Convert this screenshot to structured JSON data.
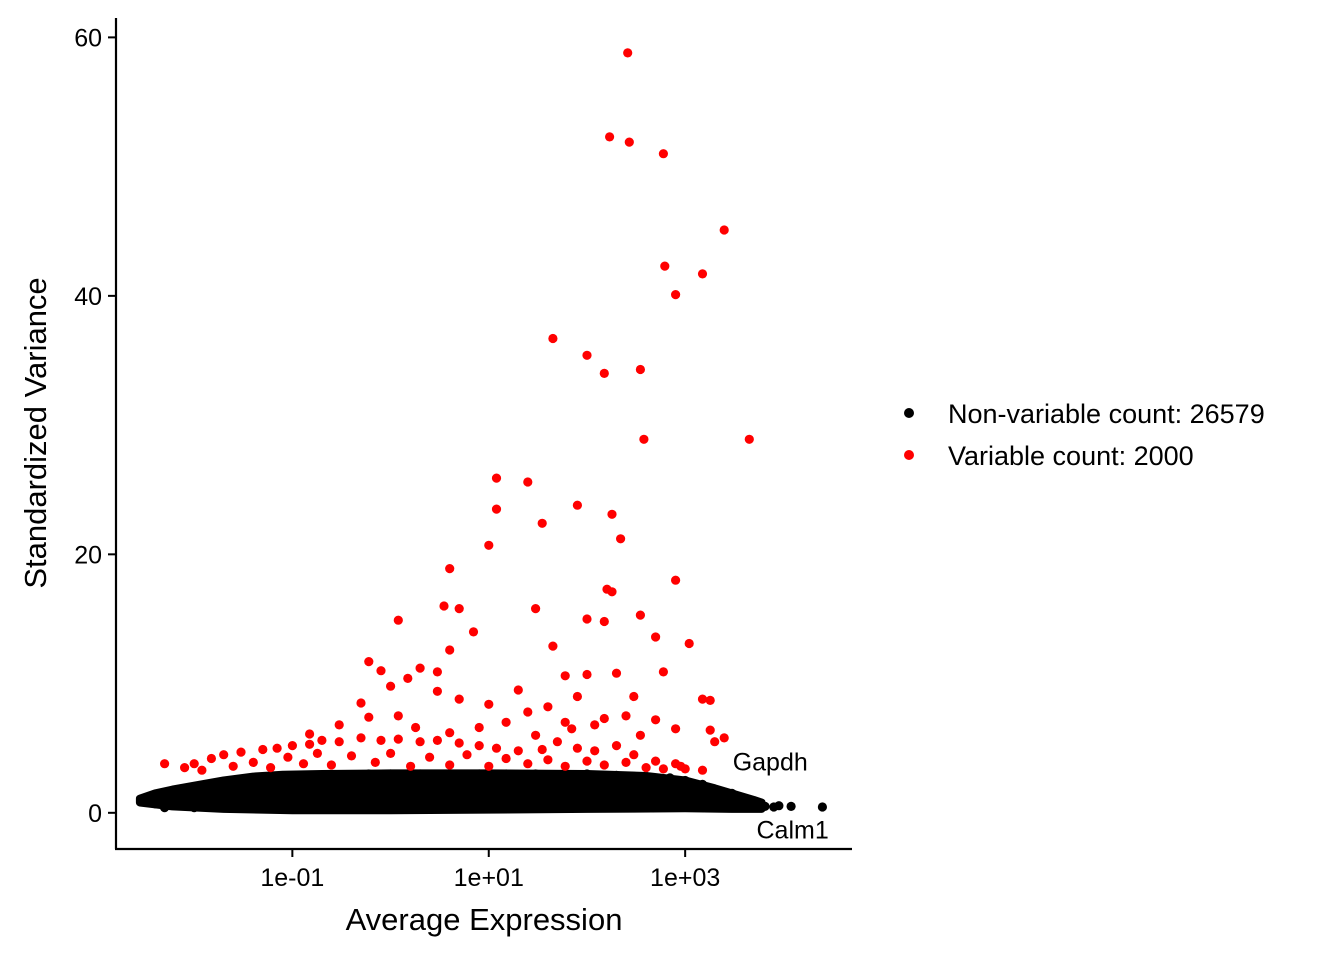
{
  "chart_data": {
    "type": "scatter",
    "title": "",
    "xlabel": "Average Expression",
    "ylabel": "Standardized Variance",
    "x_scale": "log10",
    "xlim": [
      0.0016,
      50000
    ],
    "ylim": [
      -2.8,
      61.5
    ],
    "x_ticks": [
      {
        "value": 0.1,
        "label": "1e-01"
      },
      {
        "value": 10,
        "label": "1e+01"
      },
      {
        "value": 1000,
        "label": "1e+03"
      }
    ],
    "y_ticks": [
      {
        "value": 0,
        "label": "0"
      },
      {
        "value": 20,
        "label": "20"
      },
      {
        "value": 40,
        "label": "40"
      },
      {
        "value": 60,
        "label": "60"
      }
    ],
    "grid": false,
    "legend_position": "right",
    "series": [
      {
        "name": "Non-variable count: 26579",
        "color": "#000000",
        "points": [
          [
            0.003,
            1.0
          ],
          [
            0.004,
            1.2
          ],
          [
            0.005,
            1.4
          ],
          [
            0.006,
            1.5
          ],
          [
            0.008,
            1.7
          ],
          [
            0.01,
            1.8
          ],
          [
            0.015,
            2.0
          ],
          [
            0.02,
            2.2
          ],
          [
            0.03,
            2.4
          ],
          [
            0.05,
            2.6
          ],
          [
            0.08,
            2.8
          ],
          [
            0.12,
            2.9
          ],
          [
            0.2,
            2.9
          ],
          [
            0.35,
            2.95
          ],
          [
            0.6,
            3.0
          ],
          [
            1,
            3.0
          ],
          [
            2,
            3.0
          ],
          [
            4,
            3.0
          ],
          [
            8,
            3.0
          ],
          [
            15,
            3.0
          ],
          [
            30,
            3.0
          ],
          [
            60,
            3.0
          ],
          [
            100,
            3.0
          ],
          [
            200,
            2.9
          ],
          [
            400,
            2.8
          ],
          [
            700,
            2.7
          ],
          [
            1000,
            2.5
          ],
          [
            1500,
            2.2
          ],
          [
            2000,
            1.8
          ],
          [
            3000,
            1.5
          ],
          [
            0.004,
            0.7
          ],
          [
            0.006,
            0.8
          ],
          [
            0.01,
            0.9
          ],
          [
            0.02,
            1.0
          ],
          [
            0.05,
            1.0
          ],
          [
            0.1,
            1.0
          ],
          [
            0.3,
            1.0
          ],
          [
            1,
            1.0
          ],
          [
            3,
            1.0
          ],
          [
            10,
            1.0
          ],
          [
            30,
            1.0
          ],
          [
            100,
            1.0
          ],
          [
            300,
            1.0
          ],
          [
            1000,
            1.0
          ],
          [
            3000,
            0.9
          ],
          [
            0.005,
            0.4
          ],
          [
            0.01,
            0.4
          ],
          [
            0.03,
            0.35
          ],
          [
            0.1,
            0.35
          ],
          [
            0.3,
            0.35
          ],
          [
            1,
            0.4
          ],
          [
            3,
            0.4
          ],
          [
            10,
            0.5
          ],
          [
            30,
            0.5
          ],
          [
            100,
            0.5
          ],
          [
            300,
            0.6
          ],
          [
            1000,
            0.7
          ],
          [
            2000,
            0.6
          ],
          [
            4000,
            0.6
          ],
          [
            5000,
            0.5
          ],
          [
            0.01,
            1.9
          ],
          [
            0.03,
            1.6
          ],
          [
            0.1,
            2.1
          ],
          [
            0.3,
            1.5
          ],
          [
            1,
            2.2
          ],
          [
            3,
            1.7
          ],
          [
            10,
            2.3
          ],
          [
            30,
            1.6
          ],
          [
            100,
            2.0
          ],
          [
            300,
            1.8
          ],
          [
            1000,
            1.7
          ],
          [
            0.02,
            0.6
          ],
          [
            0.05,
            1.5
          ],
          [
            0.2,
            0.7
          ],
          [
            0.5,
            2.4
          ],
          [
            2,
            0.6
          ],
          [
            5,
            2.5
          ],
          [
            20,
            0.7
          ],
          [
            50,
            2.2
          ],
          [
            200,
            0.8
          ],
          [
            500,
            2.1
          ],
          [
            0.008,
            1.3
          ],
          [
            0.04,
            1.1
          ],
          [
            0.15,
            1.3
          ],
          [
            0.7,
            1.2
          ],
          [
            1.5,
            1.4
          ],
          [
            7,
            1.3
          ],
          [
            25,
            1.2
          ],
          [
            70,
            1.4
          ],
          [
            150,
            1.2
          ],
          [
            700,
            1.3
          ],
          [
            5000,
            0.5
          ],
          [
            6500,
            0.5
          ],
          [
            8000,
            0.45
          ],
          [
            9000,
            0.55
          ],
          [
            12000,
            0.5
          ],
          [
            25000,
            0.45
          ]
        ]
      },
      {
        "name": "Variable count: 2000",
        "color": "#ff0000",
        "points": [
          [
            260,
            58.8
          ],
          [
            170,
            52.3
          ],
          [
            270,
            51.9
          ],
          [
            600,
            51.0
          ],
          [
            2500,
            45.1
          ],
          [
            620,
            42.3
          ],
          [
            1500,
            41.7
          ],
          [
            800,
            40.1
          ],
          [
            45,
            36.7
          ],
          [
            100,
            35.4
          ],
          [
            150,
            34.0
          ],
          [
            350,
            34.3
          ],
          [
            380,
            28.9
          ],
          [
            4500,
            28.9
          ],
          [
            12,
            25.9
          ],
          [
            25,
            25.6
          ],
          [
            12,
            23.5
          ],
          [
            80,
            23.8
          ],
          [
            180,
            23.1
          ],
          [
            35,
            22.4
          ],
          [
            220,
            21.2
          ],
          [
            10,
            20.7
          ],
          [
            4,
            18.9
          ],
          [
            800,
            18.0
          ],
          [
            160,
            17.3
          ],
          [
            180,
            17.1
          ],
          [
            3.5,
            16.0
          ],
          [
            5,
            15.8
          ],
          [
            30,
            15.8
          ],
          [
            350,
            15.3
          ],
          [
            100,
            15.0
          ],
          [
            1.2,
            14.9
          ],
          [
            150,
            14.8
          ],
          [
            7,
            14.0
          ],
          [
            500,
            13.6
          ],
          [
            1100,
            13.1
          ],
          [
            45,
            12.9
          ],
          [
            4,
            12.6
          ],
          [
            0.6,
            11.7
          ],
          [
            2,
            11.2
          ],
          [
            0.8,
            11.0
          ],
          [
            3,
            10.9
          ],
          [
            60,
            10.6
          ],
          [
            100,
            10.7
          ],
          [
            200,
            10.8
          ],
          [
            600,
            10.9
          ],
          [
            1.5,
            10.4
          ],
          [
            3,
            9.4
          ],
          [
            20,
            9.5
          ],
          [
            80,
            9.0
          ],
          [
            300,
            9.0
          ],
          [
            0.5,
            8.5
          ],
          [
            1,
            9.8
          ],
          [
            1.2,
            7.5
          ],
          [
            5,
            8.8
          ],
          [
            10,
            8.4
          ],
          [
            25,
            7.8
          ],
          [
            40,
            8.2
          ],
          [
            60,
            7.0
          ],
          [
            150,
            7.3
          ],
          [
            250,
            7.5
          ],
          [
            500,
            7.2
          ],
          [
            1500,
            8.8
          ],
          [
            1800,
            8.7
          ],
          [
            0.15,
            6.1
          ],
          [
            0.3,
            6.8
          ],
          [
            0.6,
            7.4
          ],
          [
            1.8,
            6.6
          ],
          [
            4,
            6.2
          ],
          [
            8,
            6.6
          ],
          [
            15,
            7.0
          ],
          [
            30,
            6.0
          ],
          [
            70,
            6.5
          ],
          [
            120,
            6.8
          ],
          [
            350,
            6.0
          ],
          [
            800,
            6.5
          ],
          [
            1800,
            6.4
          ],
          [
            2000,
            5.5
          ],
          [
            2500,
            5.8
          ],
          [
            0.005,
            3.8
          ],
          [
            0.008,
            3.5
          ],
          [
            0.01,
            3.8
          ],
          [
            0.015,
            4.2
          ],
          [
            0.02,
            4.5
          ],
          [
            0.03,
            4.7
          ],
          [
            0.05,
            4.9
          ],
          [
            0.07,
            5.0
          ],
          [
            0.1,
            5.2
          ],
          [
            0.15,
            5.3
          ],
          [
            0.2,
            5.6
          ],
          [
            0.3,
            5.5
          ],
          [
            0.5,
            5.8
          ],
          [
            0.8,
            5.6
          ],
          [
            1.2,
            5.7
          ],
          [
            2,
            5.5
          ],
          [
            3,
            5.6
          ],
          [
            5,
            5.4
          ],
          [
            8,
            5.2
          ],
          [
            12,
            5.0
          ],
          [
            20,
            4.8
          ],
          [
            35,
            4.9
          ],
          [
            50,
            5.5
          ],
          [
            80,
            5.0
          ],
          [
            120,
            4.8
          ],
          [
            200,
            5.2
          ],
          [
            300,
            4.5
          ],
          [
            500,
            4.0
          ],
          [
            800,
            3.8
          ],
          [
            1000,
            3.4
          ],
          [
            1500,
            3.3
          ],
          [
            0.012,
            3.3
          ],
          [
            0.025,
            3.6
          ],
          [
            0.04,
            3.9
          ],
          [
            0.06,
            3.5
          ],
          [
            0.09,
            4.3
          ],
          [
            0.13,
            3.8
          ],
          [
            0.18,
            4.6
          ],
          [
            0.25,
            3.7
          ],
          [
            0.4,
            4.4
          ],
          [
            0.7,
            3.9
          ],
          [
            1,
            4.6
          ],
          [
            1.6,
            3.6
          ],
          [
            2.5,
            4.3
          ],
          [
            4,
            3.7
          ],
          [
            6,
            4.5
          ],
          [
            10,
            3.6
          ],
          [
            15,
            4.2
          ],
          [
            25,
            3.8
          ],
          [
            40,
            4.1
          ],
          [
            60,
            3.6
          ],
          [
            100,
            4.0
          ],
          [
            150,
            3.7
          ],
          [
            250,
            3.9
          ],
          [
            400,
            3.5
          ],
          [
            600,
            3.4
          ],
          [
            900,
            3.6
          ]
        ]
      }
    ],
    "annotations": [
      {
        "label": "Gapdh",
        "x": 2300,
        "y": 2.8
      },
      {
        "label": "Calm1",
        "x": 13000,
        "y": 0.5
      }
    ]
  }
}
